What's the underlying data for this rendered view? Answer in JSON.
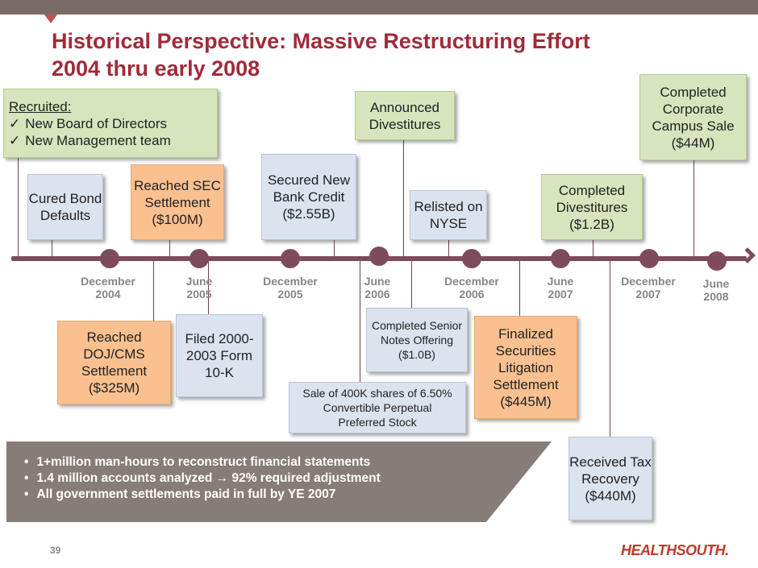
{
  "title": {
    "line1": "Historical Perspective: Massive Restructuring Effort",
    "line2": "2004 thru early 2008"
  },
  "colors": {
    "accent": "#a12b39",
    "timeline": "#7d4b5b",
    "green_box": "#d7e4bd",
    "blue_box": "#dbe3ef",
    "orange_box": "#fac090",
    "banner": "#867d78"
  },
  "events_above": {
    "recruited": {
      "header": "Recruited:",
      "items": [
        "New Board of Directors",
        "New Management team"
      ]
    },
    "cured_bond": "Cured Bond Defaults",
    "sec_settlement": "Reached SEC Settlement ($100M)",
    "bank_credit": "Secured New Bank Credit ($2.55B)",
    "announced_divest": "Announced Divestitures",
    "relisted": "Relisted on NYSE",
    "completed_divest": "Completed Divestitures ($1.2B)",
    "campus_sale": "Completed Corporate Campus Sale ($44M)"
  },
  "timeline_ticks": [
    {
      "month": "December",
      "year": "2004"
    },
    {
      "month": "June",
      "year": "2005"
    },
    {
      "month": "December",
      "year": "2005"
    },
    {
      "month": "June",
      "year": "2006"
    },
    {
      "month": "December",
      "year": "2006"
    },
    {
      "month": "June",
      "year": "2007"
    },
    {
      "month": "December",
      "year": "2007"
    },
    {
      "month": "June",
      "year": "2008"
    }
  ],
  "events_below": {
    "doj_cms": "Reached DOJ/CMS Settlement ($325M)",
    "form_10k": "Filed 2000-2003 Form 10-K",
    "senior_notes": "Completed Senior Notes Offering ($1.0B)",
    "preferred_stock": "Sale of 400K shares of 6.50% Convertible Perpetual Preferred Stock",
    "securities_litigation": "Finalized Securities Litigation Settlement ($445M)",
    "tax_recovery": "Received Tax Recovery ($440M)"
  },
  "summary_bullets": [
    "1+million man-hours to reconstruct financial statements",
    "1.4 million accounts analyzed → 92% required adjustment",
    "All government settlements paid in full by YE 2007"
  ],
  "footer": {
    "page_number": "39",
    "logo_text": "HEALTHSOUTH."
  }
}
